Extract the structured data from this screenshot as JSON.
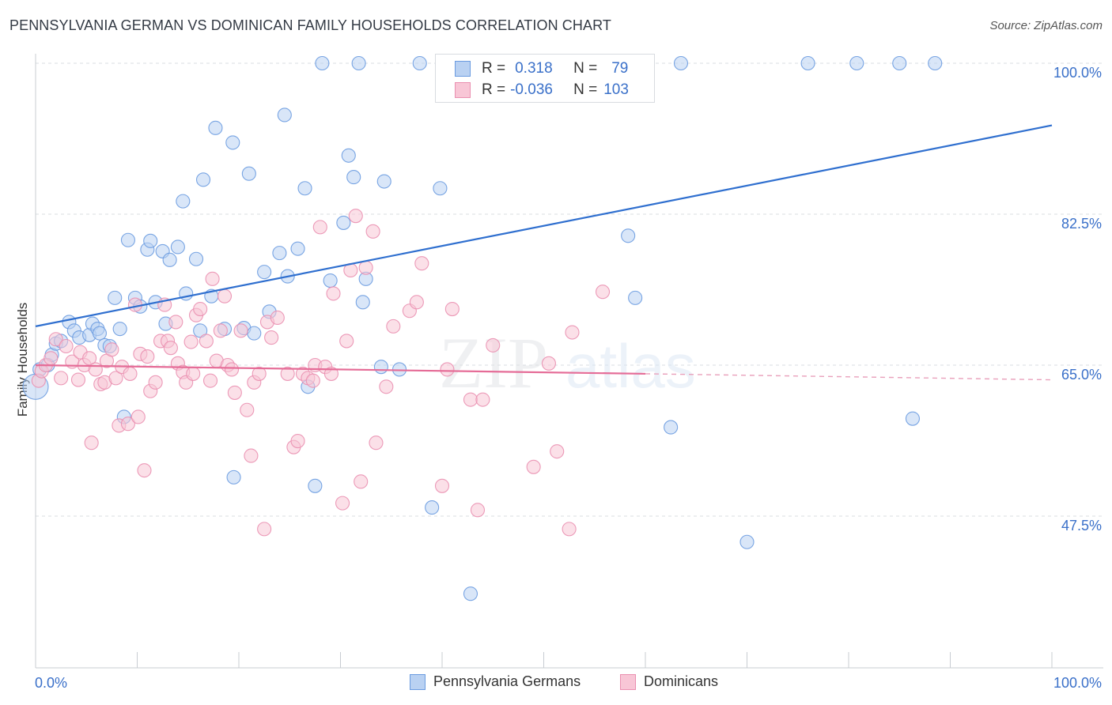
{
  "title": "PENNSYLVANIA GERMAN VS DOMINICAN FAMILY HOUSEHOLDS CORRELATION CHART",
  "source": "Source: ZipAtlas.com",
  "watermark": {
    "zip": "ZIP",
    "atlas": "atlas"
  },
  "legend_top": {
    "rows": [
      {
        "r_label": "R =",
        "r_value": "0.318",
        "n_label": "N =",
        "n_value": "79",
        "color": "#6a9be0",
        "fill": "#b9d1f2"
      },
      {
        "r_label": "R =",
        "r_value": "-0.036",
        "n_label": "N =",
        "n_value": "103",
        "color": "#ea8fb0",
        "fill": "#f8c6d6"
      }
    ]
  },
  "legend_bottom": [
    {
      "label": "Pennsylvania Germans",
      "color": "#6a9be0",
      "fill": "#b9d1f2"
    },
    {
      "label": "Dominicans",
      "color": "#ea8fb0",
      "fill": "#f8c6d6"
    }
  ],
  "chart_data": {
    "type": "scatter",
    "title": "PENNSYLVANIA GERMAN VS DOMINICAN FAMILY HOUSEHOLDS CORRELATION CHART",
    "xlabel": "",
    "ylabel": "Family Households",
    "xlim": [
      0,
      100
    ],
    "ylim": [
      32,
      102
    ],
    "x_tick_labels": [
      "0.0%",
      "100.0%"
    ],
    "y_ticks": [
      47.5,
      65.0,
      82.5,
      100.0
    ],
    "y_tick_labels": [
      "47.5%",
      "65.0%",
      "82.5%",
      "100.0%"
    ],
    "grid": true,
    "series": [
      {
        "name": "Pennsylvania Germans",
        "color": "#6a9be0",
        "fill": "#b9d1f2",
        "trend": {
          "x": [
            0,
            100
          ],
          "y": [
            69.5,
            92.8
          ],
          "style": "solid"
        },
        "points": [
          [
            0.0,
            62.5
          ],
          [
            0.4,
            64.5
          ],
          [
            1.2,
            65.0
          ],
          [
            1.6,
            66.2
          ],
          [
            2.0,
            67.5
          ],
          [
            2.5,
            67.8
          ],
          [
            3.3,
            70.0
          ],
          [
            3.8,
            69.0
          ],
          [
            4.3,
            68.2
          ],
          [
            5.3,
            68.5
          ],
          [
            5.6,
            69.8
          ],
          [
            6.1,
            69.2
          ],
          [
            6.3,
            68.7
          ],
          [
            6.8,
            67.3
          ],
          [
            7.3,
            67.2
          ],
          [
            7.8,
            72.8
          ],
          [
            8.3,
            69.2
          ],
          [
            8.7,
            59.0
          ],
          [
            9.1,
            79.5
          ],
          [
            9.8,
            72.8
          ],
          [
            10.3,
            71.8
          ],
          [
            11.0,
            78.4
          ],
          [
            11.3,
            79.4
          ],
          [
            11.8,
            72.3
          ],
          [
            12.5,
            78.2
          ],
          [
            12.8,
            69.8
          ],
          [
            13.2,
            77.2
          ],
          [
            14.0,
            78.7
          ],
          [
            14.5,
            84.0
          ],
          [
            14.8,
            73.3
          ],
          [
            15.8,
            77.3
          ],
          [
            16.2,
            69.0
          ],
          [
            16.5,
            86.5
          ],
          [
            17.3,
            73.0
          ],
          [
            17.7,
            92.5
          ],
          [
            18.6,
            69.2
          ],
          [
            19.4,
            90.8
          ],
          [
            19.5,
            52.0
          ],
          [
            20.5,
            69.3
          ],
          [
            21.0,
            87.2
          ],
          [
            21.5,
            68.7
          ],
          [
            22.5,
            75.8
          ],
          [
            23.0,
            71.2
          ],
          [
            24.0,
            78.0
          ],
          [
            24.5,
            94.0
          ],
          [
            24.8,
            75.3
          ],
          [
            25.8,
            78.5
          ],
          [
            26.5,
            85.5
          ],
          [
            26.8,
            62.5
          ],
          [
            27.5,
            51.0
          ],
          [
            28.2,
            100.0
          ],
          [
            29.0,
            74.8
          ],
          [
            30.3,
            81.5
          ],
          [
            30.8,
            89.3
          ],
          [
            31.3,
            86.8
          ],
          [
            31.8,
            100.0
          ],
          [
            32.2,
            72.3
          ],
          [
            32.5,
            75.0
          ],
          [
            34.0,
            64.8
          ],
          [
            34.3,
            86.3
          ],
          [
            35.8,
            64.5
          ],
          [
            37.8,
            100.0
          ],
          [
            39.0,
            48.5
          ],
          [
            39.8,
            85.5
          ],
          [
            40.3,
            100.0
          ],
          [
            42.3,
            100.0
          ],
          [
            42.8,
            38.5
          ],
          [
            46.3,
            100.0
          ],
          [
            47.8,
            100.0
          ],
          [
            50.0,
            100.0
          ],
          [
            53.8,
            100.0
          ],
          [
            56.3,
            100.0
          ],
          [
            58.3,
            80.0
          ],
          [
            59.0,
            72.8
          ],
          [
            62.5,
            57.8
          ],
          [
            63.5,
            100.0
          ],
          [
            70.0,
            44.5
          ],
          [
            76.0,
            100.0
          ],
          [
            80.8,
            100.0
          ],
          [
            85.0,
            100.0
          ],
          [
            86.3,
            58.8
          ],
          [
            88.5,
            100.0
          ]
        ]
      },
      {
        "name": "Dominicans",
        "color": "#ea8fb0",
        "fill": "#f8c6d6",
        "trend": {
          "x": [
            0,
            60,
            100
          ],
          "y": [
            65.0,
            64.0,
            63.3
          ],
          "style": "solid-then-dashed"
        },
        "points": [
          [
            0.3,
            63.2
          ],
          [
            0.6,
            64.3
          ],
          [
            1.0,
            65.0
          ],
          [
            1.5,
            65.8
          ],
          [
            2.0,
            68.0
          ],
          [
            2.5,
            63.5
          ],
          [
            3.0,
            67.2
          ],
          [
            3.6,
            65.4
          ],
          [
            4.2,
            63.3
          ],
          [
            4.4,
            66.5
          ],
          [
            4.8,
            65.0
          ],
          [
            5.3,
            65.8
          ],
          [
            5.5,
            56.0
          ],
          [
            5.9,
            64.5
          ],
          [
            6.4,
            62.8
          ],
          [
            6.8,
            63.0
          ],
          [
            7.0,
            65.5
          ],
          [
            7.5,
            66.8
          ],
          [
            7.9,
            63.5
          ],
          [
            8.2,
            58.0
          ],
          [
            8.5,
            64.8
          ],
          [
            9.1,
            58.2
          ],
          [
            9.3,
            64.0
          ],
          [
            9.8,
            72.0
          ],
          [
            10.1,
            59.0
          ],
          [
            10.3,
            66.3
          ],
          [
            10.7,
            52.8
          ],
          [
            11.0,
            66.0
          ],
          [
            11.3,
            62.0
          ],
          [
            11.8,
            63.0
          ],
          [
            12.3,
            67.8
          ],
          [
            12.7,
            72.0
          ],
          [
            13.0,
            67.8
          ],
          [
            13.3,
            67.0
          ],
          [
            13.8,
            70.0
          ],
          [
            14.0,
            65.2
          ],
          [
            14.5,
            64.2
          ],
          [
            14.8,
            63.0
          ],
          [
            15.3,
            67.7
          ],
          [
            15.5,
            64.0
          ],
          [
            15.8,
            70.8
          ],
          [
            16.2,
            71.5
          ],
          [
            16.8,
            67.8
          ],
          [
            17.2,
            63.2
          ],
          [
            17.4,
            75.0
          ],
          [
            17.8,
            65.5
          ],
          [
            18.2,
            69.0
          ],
          [
            18.6,
            73.0
          ],
          [
            18.9,
            65.0
          ],
          [
            19.3,
            64.5
          ],
          [
            19.6,
            61.8
          ],
          [
            20.2,
            69.0
          ],
          [
            20.8,
            59.8
          ],
          [
            21.2,
            54.5
          ],
          [
            21.5,
            63.0
          ],
          [
            22.0,
            64.0
          ],
          [
            22.5,
            46.0
          ],
          [
            22.8,
            70.0
          ],
          [
            23.2,
            68.2
          ],
          [
            23.8,
            70.5
          ],
          [
            24.8,
            64.0
          ],
          [
            25.4,
            55.5
          ],
          [
            25.8,
            56.2
          ],
          [
            26.3,
            64.0
          ],
          [
            26.8,
            63.5
          ],
          [
            27.3,
            63.2
          ],
          [
            27.5,
            65.0
          ],
          [
            28.0,
            81.0
          ],
          [
            28.5,
            64.8
          ],
          [
            29.1,
            64.0
          ],
          [
            29.3,
            73.3
          ],
          [
            30.2,
            49.0
          ],
          [
            30.6,
            67.8
          ],
          [
            31.0,
            76.0
          ],
          [
            31.5,
            82.3
          ],
          [
            32.0,
            51.5
          ],
          [
            32.5,
            76.3
          ],
          [
            33.2,
            80.5
          ],
          [
            33.5,
            56.0
          ],
          [
            34.5,
            62.5
          ],
          [
            35.2,
            69.5
          ],
          [
            36.8,
            71.3
          ],
          [
            37.5,
            72.3
          ],
          [
            38.0,
            76.8
          ],
          [
            40.0,
            51.0
          ],
          [
            40.5,
            64.5
          ],
          [
            41.0,
            71.5
          ],
          [
            42.8,
            61.0
          ],
          [
            43.5,
            48.2
          ],
          [
            44.0,
            61.0
          ],
          [
            45.0,
            67.3
          ],
          [
            49.0,
            53.2
          ],
          [
            50.5,
            65.2
          ],
          [
            51.3,
            55.0
          ],
          [
            52.5,
            46.0
          ],
          [
            52.8,
            68.8
          ],
          [
            55.8,
            73.5
          ]
        ]
      }
    ]
  }
}
